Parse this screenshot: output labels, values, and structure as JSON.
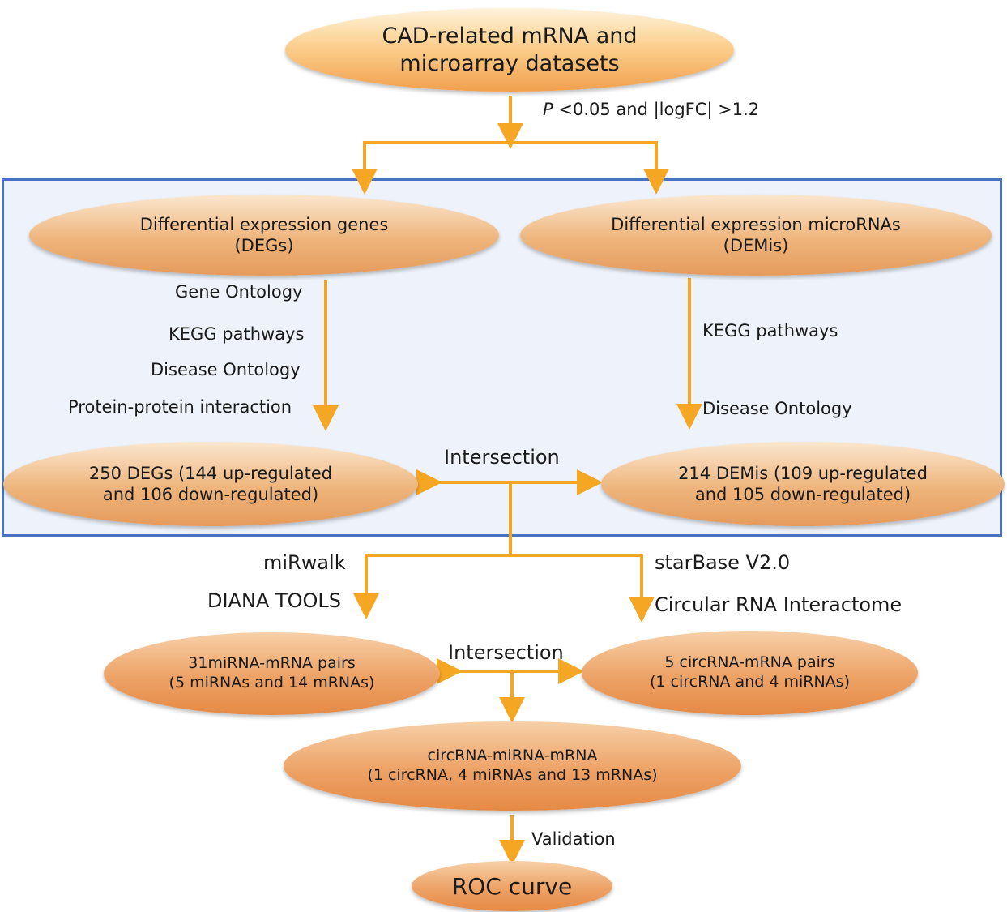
{
  "nodes": {
    "top": {
      "line1": "CAD-related mRNA and",
      "line2": "microarray datasets"
    },
    "degs": {
      "line1": "Differential expression genes",
      "line2": "(DEGs)"
    },
    "demis": {
      "line1": "Differential expression microRNAs",
      "line2": "(DEMis)"
    },
    "degs_count": {
      "line1": "250 DEGs (144 up-regulated",
      "line2": "and 106 down-regulated)"
    },
    "demis_count": {
      "line1": "214 DEMis (109 up-regulated",
      "line2": "and 105 down-regulated)"
    },
    "mirna_mrna": {
      "line1": "31miRNA-mRNA pairs",
      "line2": "(5 miRNAs and 14 mRNAs)"
    },
    "circrna_mrna": {
      "line1": "5 circRNA-mRNA pairs",
      "line2": "(1 circRNA and 4 miRNAs)"
    },
    "network": {
      "line1": "circRNA-miRNA-mRNA",
      "line2": "(1 circRNA, 4 miRNAs and 13 mRNAs)"
    },
    "roc": {
      "line1": "ROC curve"
    }
  },
  "labels": {
    "filter_p": "P",
    "filter_rest": "<0.05 and |logFC| >1.2",
    "gene_ontology": "Gene Ontology",
    "kegg_left": "KEGG pathways",
    "disease_ontology_left": "Disease Ontology",
    "ppi": "Protein-protein interaction",
    "kegg_right": "KEGG pathways",
    "disease_ontology_right": "Disease Ontology",
    "intersection_1": "Intersection",
    "mirwalk": "miRwalk",
    "diana": "DIANA TOOLS",
    "starbase": "starBase V2.0",
    "circular_rna": "Circular RNA Interactome",
    "intersection_2": "Intersection",
    "validation": "Validation"
  },
  "colors": {
    "arrow": "#f5a623",
    "panel_border": "#4a72c4",
    "panel_fill": "#eef3fb"
  }
}
